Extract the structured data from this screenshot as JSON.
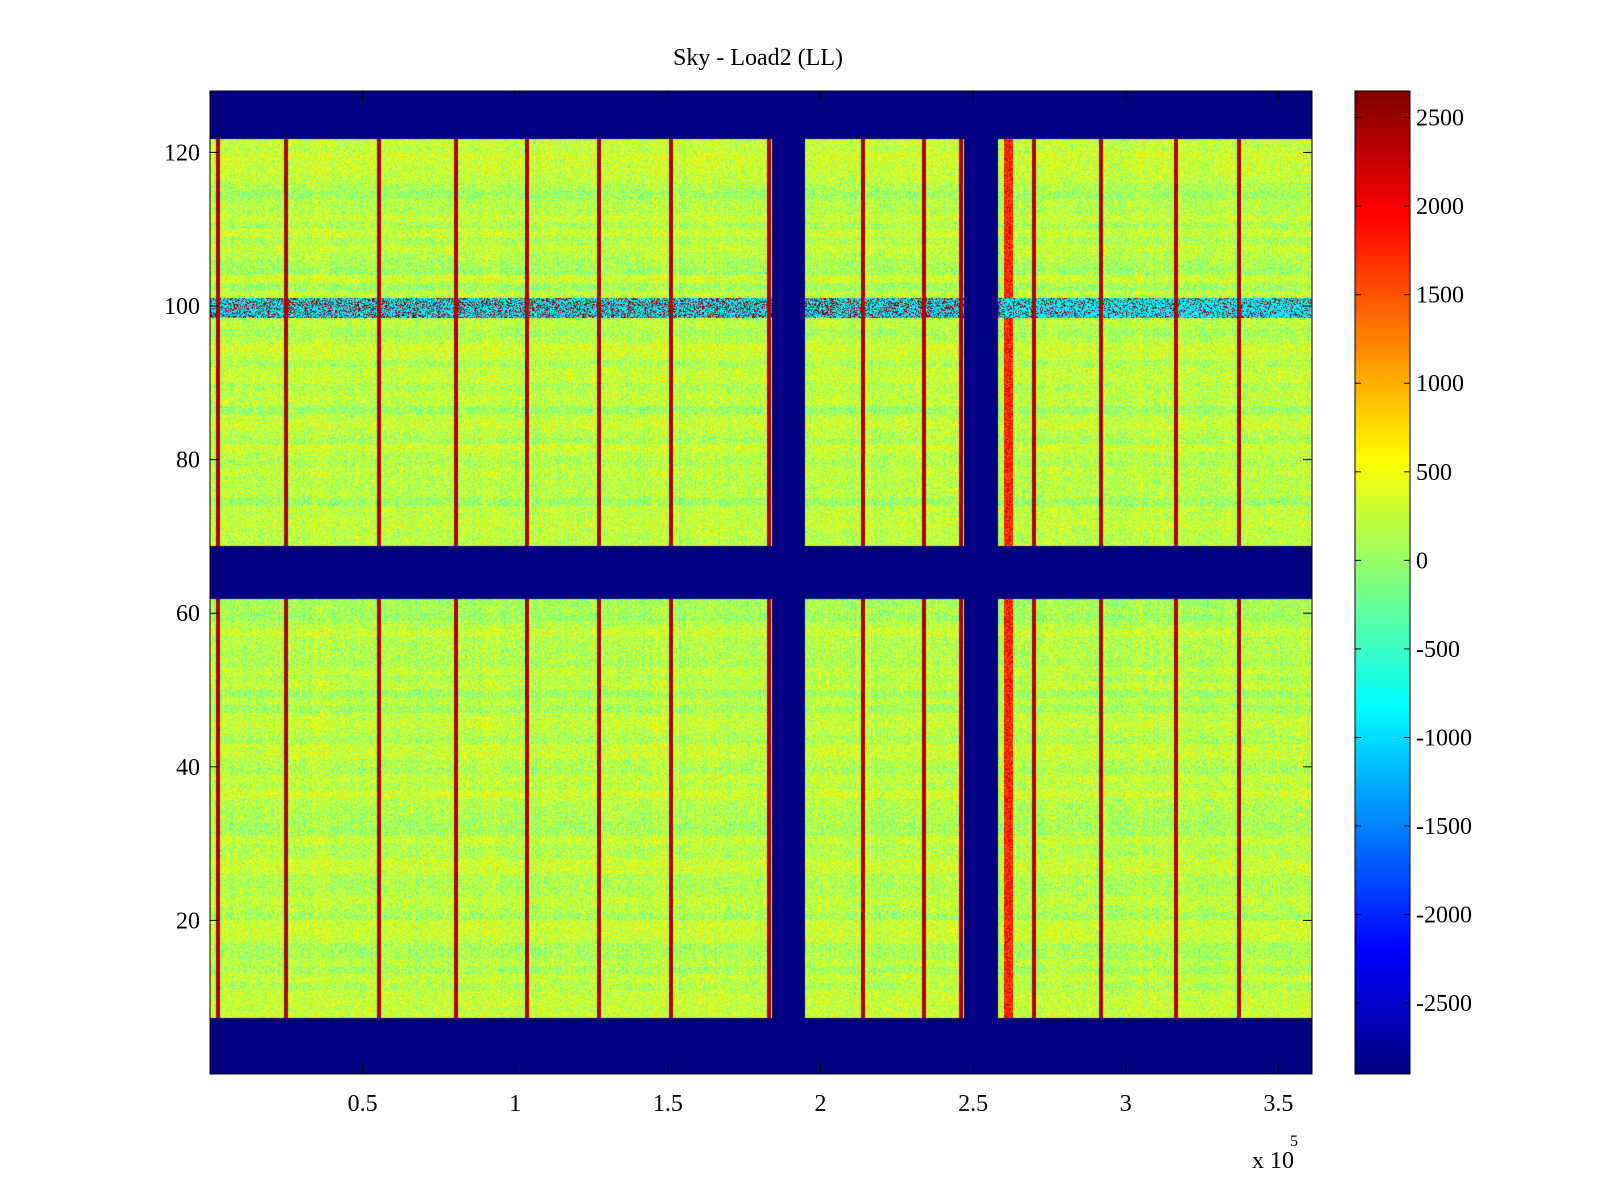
{
  "chart_data": {
    "type": "heatmap",
    "title": "Sky - Load2 (LL)",
    "xlabel": "",
    "ylabel": "",
    "x_multiplier": "x 10",
    "x_multiplier_exponent": "5",
    "xlim": [
      0,
      3.61
    ],
    "ylim": [
      0,
      128
    ],
    "xticks": [
      0.5,
      1,
      1.5,
      2,
      2.5,
      3,
      3.5
    ],
    "xtick_labels": [
      "0.5",
      "1",
      "1.5",
      "2",
      "2.5",
      "3",
      "3.5"
    ],
    "yticks": [
      20,
      40,
      60,
      80,
      100,
      120
    ],
    "ytick_labels": [
      "20",
      "40",
      "60",
      "80",
      "100",
      "120"
    ],
    "colorbar": {
      "colormap": "jet",
      "clim": [
        -2900,
        2650
      ],
      "ticks": [
        2500,
        2000,
        1500,
        1000,
        500,
        0,
        -500,
        -1000,
        -1500,
        -2000,
        -2500
      ],
      "tick_labels": [
        "2500",
        "2000",
        "1500",
        "1000",
        "500",
        "0",
        "-500",
        "-1000",
        "-1500",
        "-2000",
        "-2500"
      ]
    },
    "background_level": -2900,
    "data_level_mean": 200,
    "data_level_spread": 450,
    "row_bands": [
      [
        7.3,
        61.8
      ],
      [
        68.7,
        121.7
      ]
    ],
    "column_gaps": [
      [
        1.84,
        1.95
      ],
      [
        2.47,
        2.58
      ]
    ],
    "hot_columns": [
      0.025,
      0.25,
      0.555,
      0.805,
      1.04,
      1.275,
      1.51,
      1.83,
      2.14,
      2.34,
      2.46,
      2.7,
      2.92,
      3.165,
      3.37
    ],
    "hot_column_level": 2400,
    "hot_stripe_x_range": [
      2.6,
      2.63
    ],
    "hot_stripe_level": 1800,
    "hot_row_range": [
      98.5,
      101
    ],
    "hot_row_level": 2500,
    "cool_row_range": [
      98.5,
      101
    ],
    "cool_row_x_range": [
      2.6,
      3.61
    ],
    "cool_row_level": -900
  }
}
